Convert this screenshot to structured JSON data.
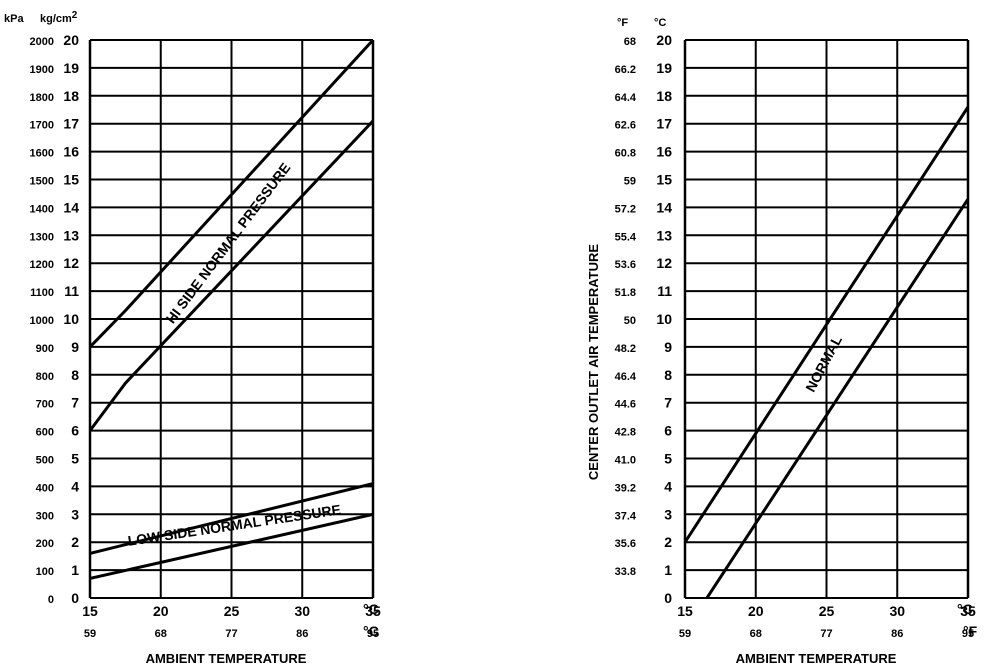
{
  "chart_data": [
    {
      "type": "line",
      "title": "",
      "xlabel": "AMBIENT TEMPERATURE",
      "ylabel": "",
      "x_unit_primary": "°C",
      "x_unit_secondary": "°C",
      "x_ticks_primary": [
        "15",
        "20",
        "25",
        "30",
        "35"
      ],
      "x_ticks_secondary": [
        "59",
        "68",
        "77",
        "86",
        "95"
      ],
      "y_unit_kpa": "kPa",
      "y_unit_kg": "kg/cm",
      "y_unit_kg_sup": "2",
      "y_ticks_kpa": [
        "0",
        "100",
        "200",
        "300",
        "400",
        "500",
        "600",
        "700",
        "800",
        "900",
        "1000",
        "1100",
        "1200",
        "1300",
        "1400",
        "1500",
        "1600",
        "1700",
        "1800",
        "1900",
        "2000"
      ],
      "y_ticks_kg": [
        "0",
        "1",
        "2",
        "3",
        "4",
        "5",
        "6",
        "7",
        "8",
        "9",
        "10",
        "11",
        "12",
        "13",
        "14",
        "15",
        "16",
        "17",
        "18",
        "19",
        "20"
      ],
      "xlim": [
        15,
        35
      ],
      "ylim": [
        0,
        20
      ],
      "grid": true,
      "series": [
        {
          "name": "HI SIDE NORMAL PRESSURE",
          "x": [
            15,
            17.5,
            35
          ],
          "upper": [
            9,
            10.3,
            20
          ],
          "lower": [
            6,
            7.7,
            17.1
          ]
        },
        {
          "name": "LOW SIDE NORMAL PRESSURE",
          "x": [
            15,
            35
          ],
          "upper": [
            1.6,
            4.1
          ],
          "lower": [
            0.7,
            3.0
          ]
        }
      ]
    },
    {
      "type": "line",
      "title": "",
      "xlabel": "AMBIENT TEMPERATURE",
      "ylabel": "CENTER OUTLET AIR TEMPERATURE",
      "x_unit_primary": "°C",
      "x_unit_secondary": "°F",
      "x_ticks_primary": [
        "15",
        "20",
        "25",
        "30",
        "35"
      ],
      "x_ticks_secondary": [
        "59",
        "68",
        "77",
        "86",
        "95"
      ],
      "y_unit_f": "°F",
      "y_unit_c": "°C",
      "y_ticks_f": [
        "",
        "33.8",
        "35.6",
        "37.4",
        "39.2",
        "41.0",
        "42.8",
        "44.6",
        "46.4",
        "48.2",
        "50",
        "51.8",
        "53.6",
        "55.4",
        "57.2",
        "59",
        "60.8",
        "62.6",
        "64.4",
        "66.2",
        "68"
      ],
      "y_ticks_c": [
        "0",
        "1",
        "2",
        "3",
        "4",
        "5",
        "6",
        "7",
        "8",
        "9",
        "10",
        "11",
        "12",
        "13",
        "14",
        "15",
        "16",
        "17",
        "18",
        "19",
        "20"
      ],
      "xlim": [
        15,
        35
      ],
      "ylim": [
        0,
        20
      ],
      "grid": true,
      "series": [
        {
          "name": "NORMAL",
          "x": [
            15,
            35
          ],
          "upper": [
            2,
            17.6
          ],
          "lower": [
            -1.2,
            14.3
          ]
        }
      ]
    }
  ]
}
